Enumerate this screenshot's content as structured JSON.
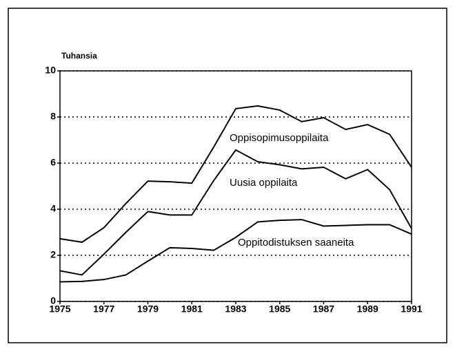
{
  "chart_data": {
    "type": "line",
    "ylabel": "Tuhansia",
    "x": [
      1975,
      1976,
      1977,
      1978,
      1979,
      1980,
      1981,
      1982,
      1983,
      1984,
      1985,
      1986,
      1987,
      1988,
      1989,
      1990,
      1991
    ],
    "xlim": [
      1975,
      1991
    ],
    "xticks": [
      1975,
      1977,
      1979,
      1981,
      1983,
      1985,
      1987,
      1989,
      1991
    ],
    "ylim": [
      0,
      10
    ],
    "yticks": [
      0,
      2,
      4,
      6,
      8,
      10
    ],
    "grid": true,
    "series": [
      {
        "name": "Oppisopimusoppilaita",
        "color": "#000000",
        "values": [
          2.72,
          2.57,
          3.2,
          4.25,
          5.22,
          5.19,
          5.13,
          6.7,
          8.36,
          8.48,
          8.3,
          7.8,
          7.97,
          7.46,
          7.67,
          7.25,
          5.82
        ]
      },
      {
        "name": "Uusia oppilaita",
        "color": "#000000",
        "values": [
          1.33,
          1.15,
          2.05,
          3.0,
          3.9,
          3.75,
          3.75,
          5.25,
          6.57,
          6.06,
          5.93,
          5.75,
          5.82,
          5.32,
          5.72,
          4.85,
          3.16
        ]
      },
      {
        "name": "Oppitodistuksen saaneita",
        "color": "#000000",
        "values": [
          0.85,
          0.87,
          0.95,
          1.15,
          1.75,
          2.33,
          2.3,
          2.22,
          2.78,
          3.45,
          3.52,
          3.55,
          3.27,
          3.3,
          3.33,
          3.33,
          2.92
        ]
      }
    ]
  }
}
